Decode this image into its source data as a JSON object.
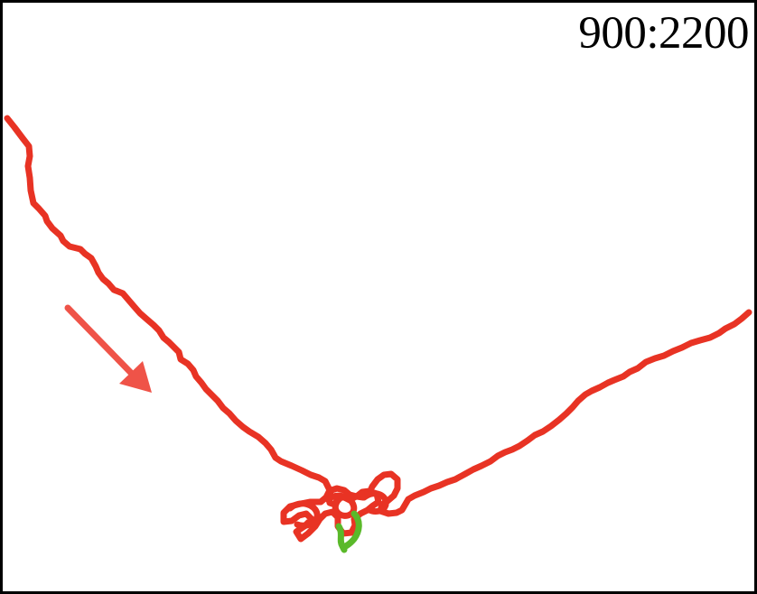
{
  "label": {
    "text": "900:2200"
  },
  "colors": {
    "background": "#ffffff",
    "border": "#000000",
    "trace_main": "#e83324",
    "trace_end": "#5ab92a",
    "arrow": "#ef5348",
    "label_text": "#000000"
  },
  "icons": {
    "direction_indicator": "arrow-down-right"
  }
}
